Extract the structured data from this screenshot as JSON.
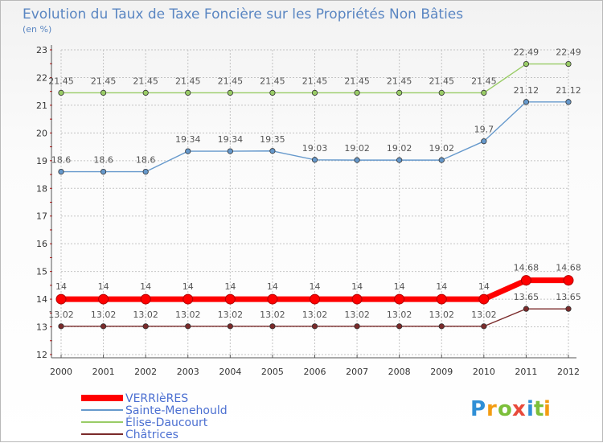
{
  "chart_data": {
    "type": "line",
    "title": "Evolution du Taux de Taxe Foncière sur les Propriétés Non Bâties",
    "ylabel": "(en %)",
    "xlabel": "",
    "ylim": [
      12,
      23
    ],
    "yticks": [
      "12",
      "13",
      "14",
      "15",
      "16",
      "17",
      "18",
      "19",
      "20",
      "21",
      "22",
      "23"
    ],
    "categories": [
      "2000",
      "2001",
      "2002",
      "2003",
      "2004",
      "2005",
      "2006",
      "2007",
      "2008",
      "2009",
      "2010",
      "2011",
      "2012"
    ],
    "grid": true,
    "series": [
      {
        "name": "VERRIèRES",
        "color": "#ff0000",
        "values": [
          14,
          14,
          14,
          14,
          14,
          14,
          14,
          14,
          14,
          14,
          14,
          14.68,
          14.68
        ],
        "labels": [
          "14",
          "14",
          "14",
          "14",
          "14",
          "14",
          "14",
          "14",
          "14",
          "14",
          "14",
          "14.68",
          "14.68"
        ]
      },
      {
        "name": "Sainte-Menehould",
        "color": "#6699cc",
        "values": [
          18.6,
          18.6,
          18.6,
          19.34,
          19.34,
          19.35,
          19.03,
          19.02,
          19.02,
          19.02,
          19.7,
          21.12,
          21.12
        ],
        "labels": [
          "18.6",
          "18.6",
          "18.6",
          "19.34",
          "19.34",
          "19.35",
          "19.03",
          "19.02",
          "19.02",
          "19.02",
          "19.7",
          "21.12",
          "21.12"
        ]
      },
      {
        "name": "Élise-Daucourt",
        "color": "#99cc66",
        "values": [
          21.45,
          21.45,
          21.45,
          21.45,
          21.45,
          21.45,
          21.45,
          21.45,
          21.45,
          21.45,
          21.45,
          22.49,
          22.49
        ],
        "labels": [
          "21.45",
          "21.45",
          "21.45",
          "21.45",
          "21.45",
          "21.45",
          "21.45",
          "21.45",
          "21.45",
          "21.45",
          "21.45",
          "22.49",
          "22.49"
        ]
      },
      {
        "name": "Châtrices",
        "color": "#7a2a2a",
        "values": [
          13.02,
          13.02,
          13.02,
          13.02,
          13.02,
          13.02,
          13.02,
          13.02,
          13.02,
          13.02,
          13.02,
          13.65,
          13.65
        ],
        "labels": [
          "13.02",
          "13.02",
          "13.02",
          "13.02",
          "13.02",
          "13.02",
          "13.02",
          "13.02",
          "13.02",
          "13.02",
          "13.02",
          "13.65",
          "13.65"
        ]
      }
    ]
  },
  "brand": {
    "letters": [
      "P",
      "r",
      "o",
      "x",
      "i",
      "t",
      "i"
    ],
    "colors": [
      "#2f8fd6",
      "#f39c12",
      "#7cbf3a",
      "#e8493a",
      "#2f8fd6",
      "#7cbf3a",
      "#f39c12"
    ]
  },
  "styles": {
    "grid_color": "#c4c4c4",
    "axis_color": "#555555",
    "tick_mark_color": "#cc0000"
  }
}
